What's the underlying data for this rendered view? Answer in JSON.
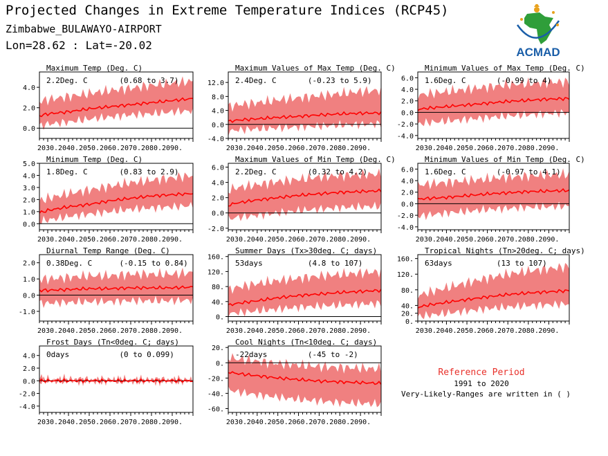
{
  "header": {
    "title": "Projected Changes in Extreme Temperature Indices (RCP45)",
    "station": "Zimbabwe_BULAWAYO-AIRPORT",
    "coords": "Lon=28.62 : Lat=-20.02"
  },
  "logo": {
    "text": "ACMAD",
    "icon": "africa-map-logo-icon"
  },
  "reference": {
    "title": "Reference Period",
    "years": "1991 to 2020",
    "note": "Very-Likely-Ranges are written in ( )"
  },
  "colors": {
    "band": "#f08080",
    "line": "#ff0000",
    "title_ref": "#e8302a",
    "zero": "#000000"
  },
  "chart_data": [
    {
      "type": "area",
      "title": "Maximum Temp (Deg. C)",
      "value_label": "2.2Deg. C",
      "range_label": "(0.68 to 3.7)",
      "x_ticks": [
        "2030.",
        "2040.",
        "2050.",
        "2060.",
        "2070.",
        "2080.",
        "2090."
      ],
      "ylim": [
        -1,
        5.5
      ],
      "y_ticks": [
        0,
        2,
        4
      ],
      "y_tick_labels": [
        "0.0",
        "2.0",
        "4.0"
      ],
      "xlim": [
        2026,
        2100
      ],
      "series": [
        {
          "x": [
            2026,
            2030,
            2040,
            2050,
            2060,
            2070,
            2080,
            2090,
            2100
          ],
          "median": [
            1.2,
            1.4,
            1.6,
            1.9,
            2.1,
            2.3,
            2.5,
            2.7,
            2.9
          ],
          "lower": [
            0.2,
            0.4,
            0.6,
            0.9,
            1.1,
            1.3,
            1.4,
            1.6,
            1.7
          ],
          "upper": [
            2.6,
            2.8,
            3.1,
            3.4,
            3.7,
            3.9,
            4.2,
            4.4,
            4.6
          ]
        }
      ]
    },
    {
      "type": "area",
      "title": "Maximum Values of Max Temp (Deg. C)",
      "value_label": "2.4Deg. C",
      "range_label": "(-0.23 to 5.9)",
      "x_ticks": [
        "2030.",
        "2040.",
        "2050.",
        "2060.",
        "2070.",
        "2080.",
        "2090."
      ],
      "ylim": [
        -4,
        15
      ],
      "y_ticks": [
        -4,
        0,
        4,
        8,
        12
      ],
      "y_tick_labels": [
        "-4.0",
        "0.0",
        "4.0",
        "8.0",
        "12.0"
      ],
      "xlim": [
        2026,
        2100
      ],
      "series": [
        {
          "x": [
            2026,
            2030,
            2040,
            2050,
            2060,
            2070,
            2080,
            2090,
            2100
          ],
          "median": [
            0.8,
            1.2,
            1.6,
            2.0,
            2.3,
            2.7,
            3.0,
            3.2,
            3.3
          ],
          "lower": [
            -2.0,
            -1.6,
            -1.3,
            -1.0,
            -0.7,
            -0.5,
            -0.2,
            0.0,
            0.2
          ],
          "upper": [
            5.0,
            5.6,
            6.2,
            7.0,
            7.6,
            8.2,
            8.8,
            9.4,
            9.8
          ]
        }
      ]
    },
    {
      "type": "area",
      "title": "Minimum Values of Max Temp (Deg. C)",
      "value_label": "1.6Deg. C",
      "range_label": "(-0.99 to 4)",
      "x_ticks": [
        "2030.",
        "2040.",
        "2050.",
        "2060.",
        "2070.",
        "2080.",
        "2090."
      ],
      "ylim": [
        -4.5,
        7
      ],
      "y_ticks": [
        -4,
        -2,
        0,
        2,
        4,
        6
      ],
      "y_tick_labels": [
        "-4.0",
        "-2.0",
        "0.0",
        "2.0",
        "4.0",
        "6.0"
      ],
      "xlim": [
        2026,
        2100
      ],
      "series": [
        {
          "x": [
            2026,
            2030,
            2040,
            2050,
            2060,
            2070,
            2080,
            2090,
            2100
          ],
          "median": [
            0.5,
            0.7,
            1.0,
            1.3,
            1.6,
            1.9,
            2.1,
            2.3,
            2.4
          ],
          "lower": [
            -2.0,
            -1.8,
            -1.5,
            -1.2,
            -0.9,
            -0.6,
            -0.4,
            -0.2,
            0.0
          ],
          "upper": [
            3.0,
            3.2,
            3.6,
            4.0,
            4.4,
            4.8,
            5.0,
            5.2,
            5.3
          ]
        }
      ]
    },
    {
      "type": "area",
      "title": "Minimum Temp (Deg. C)",
      "value_label": "1.8Deg. C",
      "range_label": "(0.83 to 2.9)",
      "x_ticks": [
        "2030.",
        "2040.",
        "2050.",
        "2060.",
        "2070.",
        "2080.",
        "2090."
      ],
      "ylim": [
        -0.5,
        5
      ],
      "y_ticks": [
        0,
        1,
        2,
        3,
        4,
        5
      ],
      "y_tick_labels": [
        "0.0",
        "1.0",
        "2.0",
        "3.0",
        "4.0",
        "5.0"
      ],
      "xlim": [
        2026,
        2100
      ],
      "series": [
        {
          "x": [
            2026,
            2030,
            2040,
            2050,
            2060,
            2070,
            2080,
            2090,
            2100
          ],
          "median": [
            0.9,
            1.1,
            1.4,
            1.6,
            1.9,
            2.1,
            2.3,
            2.4,
            2.5
          ],
          "lower": [
            0.2,
            0.3,
            0.6,
            0.8,
            1.0,
            1.2,
            1.3,
            1.4,
            1.5
          ],
          "upper": [
            1.9,
            2.1,
            2.5,
            2.8,
            3.1,
            3.4,
            3.6,
            3.8,
            4.0
          ]
        }
      ]
    },
    {
      "type": "area",
      "title": "Maximum Values of Min Temp (Deg. C)",
      "value_label": "2.2Deg. C",
      "range_label": "(0.32 to 4.2)",
      "x_ticks": [
        "2030.",
        "2040.",
        "2050.",
        "2060.",
        "2070.",
        "2080.",
        "2090."
      ],
      "ylim": [
        -2.2,
        6.5
      ],
      "y_ticks": [
        -2,
        0,
        2,
        4,
        6
      ],
      "y_tick_labels": [
        "-2.0",
        "0.0",
        "2.0",
        "4.0",
        "6.0"
      ],
      "xlim": [
        2026,
        2100
      ],
      "series": [
        {
          "x": [
            2026,
            2030,
            2040,
            2050,
            2060,
            2070,
            2080,
            2090,
            2100
          ],
          "median": [
            1.0,
            1.3,
            1.7,
            2.0,
            2.3,
            2.5,
            2.7,
            2.8,
            2.9
          ],
          "lower": [
            -0.8,
            -0.6,
            -0.3,
            0.0,
            0.3,
            0.5,
            0.7,
            0.8,
            0.9
          ],
          "upper": [
            3.0,
            3.3,
            3.7,
            4.1,
            4.4,
            4.7,
            4.9,
            5.0,
            5.1
          ]
        }
      ]
    },
    {
      "type": "area",
      "title": "Minimum Values of Min Temp (Deg. C)",
      "value_label": "1.6Deg. C",
      "range_label": "(-0.97 to 4.1)",
      "x_ticks": [
        "2030.",
        "2040.",
        "2050.",
        "2060.",
        "2070.",
        "2080.",
        "2090."
      ],
      "ylim": [
        -4.5,
        7
      ],
      "y_ticks": [
        -4,
        -2,
        0,
        2,
        4,
        6
      ],
      "y_tick_labels": [
        "-4.0",
        "-2.0",
        "0.0",
        "2.0",
        "4.0",
        "6.0"
      ],
      "xlim": [
        2026,
        2100
      ],
      "series": [
        {
          "x": [
            2026,
            2030,
            2040,
            2050,
            2060,
            2070,
            2080,
            2090,
            2100
          ],
          "median": [
            0.8,
            0.9,
            1.1,
            1.4,
            1.7,
            1.9,
            2.1,
            2.2,
            2.3
          ],
          "lower": [
            -2.2,
            -2.0,
            -1.6,
            -1.3,
            -1.0,
            -0.8,
            -0.6,
            -0.5,
            -0.4
          ],
          "upper": [
            3.2,
            3.4,
            3.7,
            4.0,
            4.3,
            4.6,
            4.8,
            5.0,
            5.1
          ]
        }
      ]
    },
    {
      "type": "area",
      "title": "Diurnal Temp Range (Deg. C)",
      "value_label": "0.38Deg. C",
      "range_label": "(-0.15 to 0.84)",
      "x_ticks": [
        "2030.",
        "2040.",
        "2050.",
        "2060.",
        "2070.",
        "2080.",
        "2090."
      ],
      "ylim": [
        -1.6,
        2.5
      ],
      "y_ticks": [
        -1,
        0,
        1,
        2
      ],
      "y_tick_labels": [
        "-1.0",
        "0.0",
        "1.0",
        "2.0"
      ],
      "xlim": [
        2026,
        2100
      ],
      "series": [
        {
          "x": [
            2026,
            2030,
            2040,
            2050,
            2060,
            2070,
            2080,
            2090,
            2100
          ],
          "median": [
            0.3,
            0.3,
            0.35,
            0.4,
            0.4,
            0.45,
            0.45,
            0.45,
            0.5
          ],
          "lower": [
            -0.5,
            -0.5,
            -0.45,
            -0.4,
            -0.4,
            -0.35,
            -0.35,
            -0.35,
            -0.3
          ],
          "upper": [
            1.0,
            1.0,
            1.1,
            1.2,
            1.2,
            1.3,
            1.3,
            1.3,
            1.4
          ]
        }
      ]
    },
    {
      "type": "area",
      "title": "Summer Days (Tx>30deg. C; days)",
      "value_label": "53days",
      "range_label": "(4.8 to 107)",
      "x_ticks": [
        "2030.",
        "2040.",
        "2050.",
        "2060.",
        "2070.",
        "2080.",
        "2090."
      ],
      "ylim": [
        -12,
        165
      ],
      "y_ticks": [
        0,
        40,
        80,
        120,
        160
      ],
      "y_tick_labels": [
        "0.",
        "40.",
        "80.",
        "120.",
        "160."
      ],
      "xlim": [
        2026,
        2100
      ],
      "series": [
        {
          "x": [
            2026,
            2030,
            2040,
            2050,
            2060,
            2070,
            2080,
            2090,
            2100
          ],
          "median": [
            30,
            35,
            42,
            50,
            56,
            60,
            64,
            67,
            70
          ],
          "lower": [
            8,
            10,
            15,
            20,
            25,
            28,
            31,
            33,
            35
          ],
          "upper": [
            70,
            78,
            88,
            96,
            102,
            108,
            112,
            116,
            120
          ]
        }
      ]
    },
    {
      "type": "area",
      "title": "Tropical Nights (Tn>20deg. C; days)",
      "value_label": "63days",
      "range_label": "(13 to 107)",
      "x_ticks": [
        "2030.",
        "2040.",
        "2050.",
        "2060.",
        "2070.",
        "2080.",
        "2090."
      ],
      "ylim": [
        0,
        170
      ],
      "y_ticks": [
        0,
        20,
        40,
        80,
        120,
        160
      ],
      "y_tick_labels": [
        "0.",
        "20.",
        "40.",
        "80.",
        "120.",
        "160."
      ],
      "xlim": [
        2026,
        2100
      ],
      "series": [
        {
          "x": [
            2026,
            2030,
            2040,
            2050,
            2060,
            2070,
            2080,
            2090,
            2100
          ],
          "median": [
            35,
            40,
            48,
            55,
            62,
            68,
            72,
            75,
            78
          ],
          "lower": [
            12,
            14,
            20,
            26,
            32,
            36,
            40,
            42,
            44
          ],
          "upper": [
            65,
            72,
            85,
            98,
            110,
            120,
            128,
            134,
            140
          ]
        }
      ]
    },
    {
      "type": "area",
      "title": "Frost Days (Tn<0deg. C; days)",
      "value_label": "0days",
      "range_label": "(0 to 0.099)",
      "x_ticks": [
        "2030.",
        "2040.",
        "2050.",
        "2060.",
        "2070.",
        "2080.",
        "2090."
      ],
      "ylim": [
        -5,
        5.5
      ],
      "y_ticks": [
        -4,
        -2,
        0,
        2,
        4
      ],
      "y_tick_labels": [
        "-4.0",
        "-2.0",
        "0.0",
        "2.0",
        "4.0"
      ],
      "xlim": [
        2026,
        2100
      ],
      "series": [
        {
          "x": [
            2026,
            2030,
            2040,
            2050,
            2060,
            2070,
            2080,
            2090,
            2100
          ],
          "median": [
            0,
            0,
            0,
            0,
            0,
            0,
            0,
            0,
            0
          ],
          "lower": [
            0,
            0,
            0,
            0,
            0,
            0,
            0,
            0,
            0
          ],
          "upper": [
            0.4,
            0.1,
            0.2,
            0.1,
            0.1,
            0.05,
            0.1,
            0.1,
            0.05
          ]
        }
      ]
    },
    {
      "type": "area",
      "title": "Cool Nights (Tn<10deg. C; days)",
      "value_label": "-22days",
      "range_label": "(-45 to -2)",
      "x_ticks": [
        "2030.",
        "2040.",
        "2050.",
        "2060.",
        "2070.",
        "2080.",
        "2090."
      ],
      "ylim": [
        -65,
        22
      ],
      "y_ticks": [
        -60,
        -40,
        -20,
        0,
        20
      ],
      "y_tick_labels": [
        "-60.",
        "-40.",
        "-20.",
        "0.",
        "20."
      ],
      "xlim": [
        2026,
        2100
      ],
      "series": [
        {
          "x": [
            2026,
            2030,
            2040,
            2050,
            2060,
            2070,
            2080,
            2090,
            2100
          ],
          "median": [
            -12,
            -14,
            -17,
            -20,
            -22,
            -24,
            -25,
            -26,
            -27
          ],
          "lower": [
            -35,
            -38,
            -42,
            -45,
            -48,
            -50,
            -52,
            -53,
            -54
          ],
          "upper": [
            8,
            5,
            2,
            -1,
            -3,
            -5,
            -6,
            -7,
            -8
          ]
        }
      ]
    }
  ]
}
